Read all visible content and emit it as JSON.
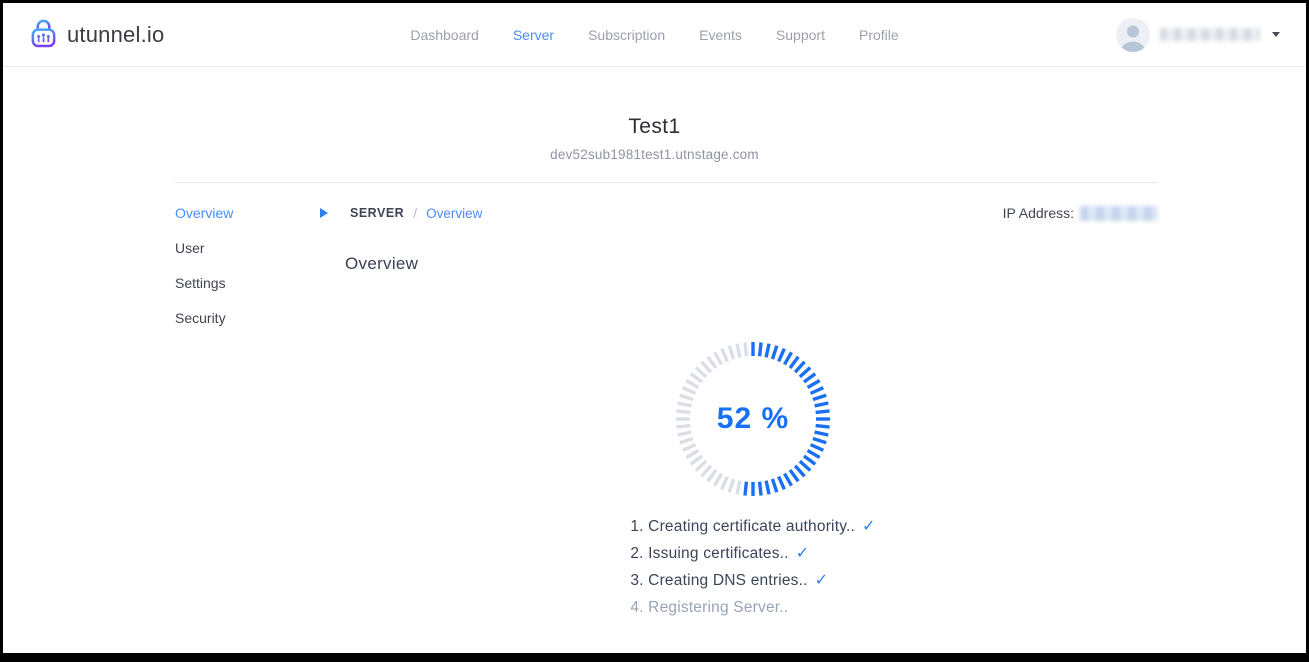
{
  "header": {
    "logo_text": "utunnel.io",
    "nav": [
      {
        "label": "Dashboard",
        "active": false
      },
      {
        "label": "Server",
        "active": true
      },
      {
        "label": "Subscription",
        "active": false
      },
      {
        "label": "Events",
        "active": false
      },
      {
        "label": "Support",
        "active": false
      },
      {
        "label": "Profile",
        "active": false
      }
    ],
    "user": {
      "name_redacted": true
    }
  },
  "server": {
    "name": "Test1",
    "domain": "dev52sub1981test1.utnstage.com",
    "ip_label": "IP Address:",
    "ip_redacted": true
  },
  "sidebar": {
    "items": [
      {
        "label": "Overview",
        "active": true
      },
      {
        "label": "User",
        "active": false
      },
      {
        "label": "Settings",
        "active": false
      },
      {
        "label": "Security",
        "active": false
      }
    ]
  },
  "breadcrumb": {
    "section": "SERVER",
    "separator": "/",
    "page": "Overview"
  },
  "main": {
    "heading": "Overview",
    "progress": {
      "percent": 52,
      "label": "52 %",
      "tick_count": 60
    },
    "steps": [
      {
        "number": "1.",
        "text": "Creating certificate authority..",
        "done": true
      },
      {
        "number": "2.",
        "text": "Issuing certificates..",
        "done": true
      },
      {
        "number": "3.",
        "text": "Creating DNS entries..",
        "done": true
      },
      {
        "number": "4.",
        "text": "Registering Server..",
        "done": false
      }
    ],
    "check_glyph": "✓"
  },
  "colors": {
    "accent": "#4a8cf7",
    "progress_blue": "#1a70f4",
    "progress_gray": "#dadee5",
    "text_dark": "#3a4557",
    "text_muted": "#99a4b4"
  }
}
